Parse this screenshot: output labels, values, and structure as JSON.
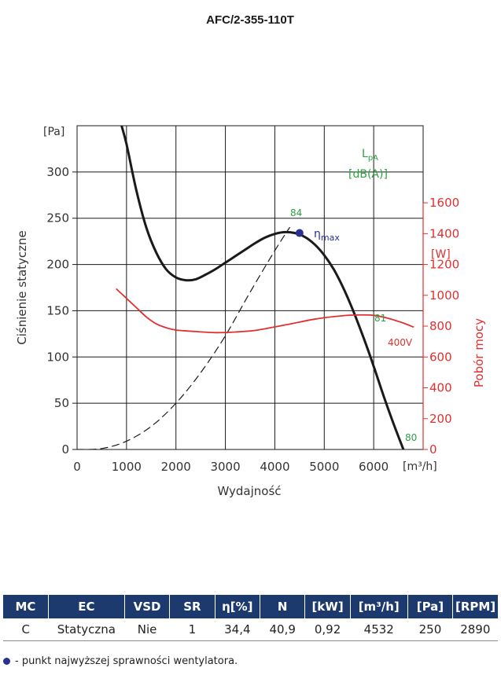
{
  "chart_data": {
    "type": "line",
    "title": "AFC/2-355-110T",
    "xlabel": "Wydajność",
    "ylabel": "Ciśnienie statyczne",
    "y2label": "Pobór mocy",
    "x_unit": "[m³/h]",
    "y_unit": "[Pa]",
    "y2_unit": "[W]",
    "xlim": [
      0,
      7000
    ],
    "ylim": [
      0,
      350
    ],
    "y2lim": [
      0,
      2100
    ],
    "x_ticks": [
      0,
      1000,
      2000,
      3000,
      4000,
      5000,
      6000
    ],
    "y_ticks": [
      0,
      50,
      100,
      150,
      200,
      250,
      300
    ],
    "y2_ticks": [
      0,
      200,
      400,
      600,
      800,
      1000,
      1200,
      1400,
      1600
    ],
    "x_tick_labels": [
      "0",
      "1000",
      "2000",
      "3000",
      "4000",
      "5000",
      "6000"
    ],
    "y_tick_labels": [
      "0",
      "50",
      "100",
      "150",
      "200",
      "250",
      "300"
    ],
    "y2_tick_labels": [
      "0",
      "200",
      "400",
      "600",
      "800",
      "1000",
      "1200",
      "1400",
      "1600"
    ],
    "series": [
      {
        "name": "pressure",
        "axis": "left",
        "color": "#1a1a1a",
        "style": "solid",
        "points": [
          [
            900,
            350
          ],
          [
            1000,
            330
          ],
          [
            1200,
            280
          ],
          [
            1400,
            240
          ],
          [
            1600,
            213
          ],
          [
            1800,
            195
          ],
          [
            2000,
            186
          ],
          [
            2200,
            183
          ],
          [
            2400,
            184
          ],
          [
            2600,
            189
          ],
          [
            2800,
            195
          ],
          [
            3000,
            202
          ],
          [
            3200,
            209
          ],
          [
            3400,
            216
          ],
          [
            3600,
            223
          ],
          [
            3800,
            229
          ],
          [
            4000,
            233
          ],
          [
            4200,
            235
          ],
          [
            4400,
            234
          ],
          [
            4600,
            230
          ],
          [
            4800,
            222
          ],
          [
            5000,
            210
          ],
          [
            5200,
            194
          ],
          [
            5400,
            173
          ],
          [
            5600,
            148
          ],
          [
            5800,
            120
          ],
          [
            6000,
            90
          ],
          [
            6200,
            58
          ],
          [
            6400,
            28
          ],
          [
            6600,
            0
          ]
        ]
      },
      {
        "name": "system curve",
        "axis": "left",
        "color": "#1a1a1a",
        "style": "dashed",
        "points": [
          [
            0,
            0
          ],
          [
            500,
            1
          ],
          [
            1000,
            9
          ],
          [
            1500,
            25
          ],
          [
            2000,
            50
          ],
          [
            2500,
            83
          ],
          [
            3000,
            123
          ],
          [
            3500,
            170
          ],
          [
            4000,
            215
          ],
          [
            4300,
            240
          ]
        ]
      },
      {
        "name": "400V",
        "axis": "right",
        "color": "#e03030",
        "style": "solid",
        "points": [
          [
            800,
            1040
          ],
          [
            1000,
            980
          ],
          [
            1200,
            920
          ],
          [
            1400,
            860
          ],
          [
            1600,
            815
          ],
          [
            1800,
            790
          ],
          [
            2000,
            775
          ],
          [
            2400,
            765
          ],
          [
            2800,
            758
          ],
          [
            3200,
            762
          ],
          [
            3600,
            772
          ],
          [
            4000,
            795
          ],
          [
            4400,
            820
          ],
          [
            4800,
            845
          ],
          [
            5200,
            862
          ],
          [
            5600,
            872
          ],
          [
            6000,
            870
          ],
          [
            6300,
            850
          ],
          [
            6600,
            820
          ],
          [
            6800,
            795
          ]
        ]
      }
    ],
    "annotations": {
      "lpa_line1": "L",
      "lpa_sub": "pA",
      "lpa_line2": "[dB(A)]",
      "noise_84": "84",
      "noise_81": "81",
      "noise_80": "80",
      "eta": "η",
      "eta_sub": "max",
      "power_curve_label": "400V"
    },
    "max_efficiency_point": {
      "x": 4500,
      "y": 234
    }
  },
  "table": {
    "headers": [
      "MC",
      "EC",
      "VSD",
      "SR",
      "η[%]",
      "N",
      "[kW]",
      "[m³/h]",
      "[Pa]",
      "[RPM]"
    ],
    "rows": [
      [
        "C",
        "Statyczna",
        "Nie",
        "1",
        "34,4",
        "40,9",
        "0,92",
        "4532",
        "250",
        "2890"
      ]
    ]
  },
  "footnote": "- punkt najwyższej sprawności wentylatora.",
  "colors": {
    "header_bg": "#1d3a6e",
    "dot": "#2b2f8f",
    "power": "#e03030",
    "noise": "#2ea043"
  }
}
